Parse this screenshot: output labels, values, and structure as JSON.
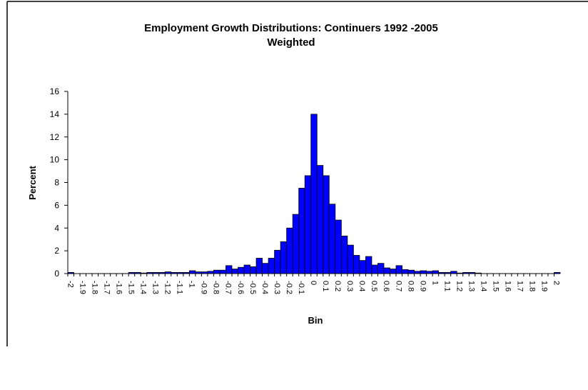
{
  "chart_data": {
    "type": "bar",
    "title": "Employment Growth Distributions: Continuers 1992 -2005",
    "subtitle": "Weighted",
    "x_label": "Bin",
    "y_label": "Percent",
    "categories": [
      "-2",
      null,
      "-1.9",
      null,
      "-1.8",
      null,
      "-1.7",
      null,
      "-1.6",
      null,
      "-1.5",
      null,
      "-1.4",
      null,
      "-1.3",
      null,
      "-1.2",
      null,
      "-1.1",
      null,
      "-1",
      null,
      "-0.9",
      null,
      "-0.8",
      null,
      "-0.7",
      null,
      "-0.6",
      null,
      "-0.5",
      null,
      "-0.4",
      null,
      "-0.3",
      null,
      "-0.2",
      null,
      "-0.1",
      null,
      "0",
      null,
      "0.1",
      null,
      "0.2",
      null,
      "0.3",
      null,
      "0.4",
      null,
      "0.5",
      null,
      "0.6",
      null,
      "0.7",
      null,
      "0.8",
      null,
      "0.9",
      null,
      "1",
      null,
      "1.1",
      null,
      "1.2",
      null,
      "1.3",
      null,
      "1.4",
      null,
      "1.5",
      null,
      "1.6",
      null,
      "1.7",
      null,
      "1.8",
      null,
      "1.9",
      null,
      "2"
    ],
    "values": [
      0.1,
      0,
      0,
      0,
      0,
      0,
      0,
      0,
      0,
      0,
      0.1,
      0.1,
      0.05,
      0.1,
      0.1,
      0.1,
      0.15,
      0.1,
      0.1,
      0.1,
      0.25,
      0.15,
      0.15,
      0.2,
      0.3,
      0.3,
      0.7,
      0.4,
      0.55,
      0.75,
      0.6,
      1.35,
      0.9,
      1.35,
      2.05,
      2.8,
      4.0,
      5.2,
      7.5,
      8.6,
      14,
      9.5,
      8.6,
      6.1,
      4.7,
      3.3,
      2.5,
      1.6,
      1.15,
      1.5,
      0.75,
      0.9,
      0.5,
      0.4,
      0.7,
      0.35,
      0.3,
      0.2,
      0.25,
      0.2,
      0.25,
      0.1,
      0.1,
      0.2,
      0.05,
      0.1,
      0.1,
      0.05,
      0,
      0,
      0,
      0,
      0,
      0,
      0,
      0,
      0,
      0,
      0,
      0,
      0.1
    ],
    "color": "#0000ff",
    "ylim": [
      0,
      16
    ],
    "yticks": [
      0,
      2,
      4,
      6,
      8,
      10,
      12,
      14,
      16
    ],
    "grid": false
  }
}
